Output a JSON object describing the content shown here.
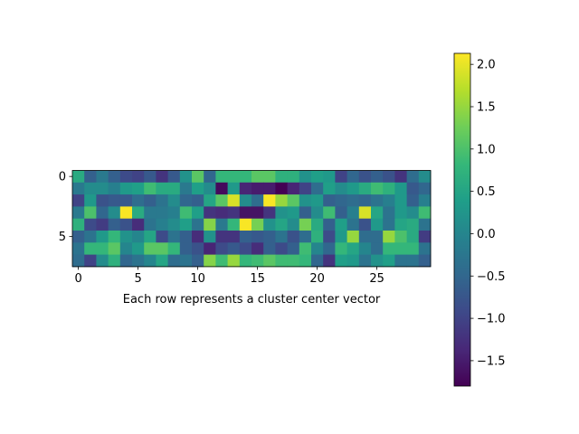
{
  "chart_data": {
    "type": "heatmap",
    "title": "",
    "xlabel": "Each row represents a cluster center vector",
    "ylabel": "",
    "colormap": "viridis",
    "n_rows": 8,
    "n_cols": 30,
    "x_ticks": [
      0,
      5,
      10,
      15,
      20,
      25
    ],
    "y_ticks": [
      0,
      5
    ],
    "colorbar": {
      "vmin": -1.8,
      "vmax": 2.13,
      "ticks": [
        -1.5,
        -1.0,
        -0.5,
        0.0,
        0.5,
        1.0,
        1.5,
        2.0
      ],
      "tick_labels": [
        "−1.5",
        "−1.0",
        "−0.5",
        "0.0",
        "0.5",
        "1.0",
        "1.5",
        "2.0"
      ]
    },
    "values": [
      [
        0.6,
        -0.6,
        -0.2,
        -0.6,
        -0.9,
        -1.0,
        -0.7,
        -1.2,
        -0.7,
        0.2,
        1.1,
        -0.5,
        0.8,
        0.8,
        0.8,
        1.1,
        1.1,
        0.7,
        0.7,
        0.2,
        0.4,
        0.3,
        -1.0,
        -0.5,
        -0.8,
        -0.6,
        -0.8,
        -1.2,
        -0.4,
        0.1
      ],
      [
        -0.2,
        0.1,
        0.1,
        -0.1,
        0.3,
        0.4,
        0.9,
        0.6,
        0.6,
        -0.2,
        0.4,
        0.1,
        -1.7,
        0.3,
        -1.4,
        -1.5,
        -1.5,
        -1.8,
        -1.4,
        -1.0,
        -0.4,
        0.4,
        0.1,
        0.3,
        0.6,
        0.9,
        0.7,
        0.3,
        -0.7,
        -0.5
      ],
      [
        -1.0,
        0.3,
        -0.8,
        -0.7,
        -0.7,
        -0.4,
        -0.6,
        -0.3,
        0.1,
        -0.5,
        -0.6,
        0.5,
        1.1,
        1.9,
        0.1,
        -0.4,
        2.1,
        1.5,
        1.1,
        0.2,
        0.3,
        -0.6,
        -0.5,
        -0.4,
        -0.5,
        -0.3,
        -0.1,
        0.3,
        -0.6,
        -0.1
      ],
      [
        -0.2,
        1.0,
        -0.5,
        0.1,
        2.1,
        0.6,
        -0.2,
        -0.2,
        -0.1,
        0.9,
        0.4,
        -1.2,
        -1.3,
        -1.2,
        -1.6,
        -1.6,
        -1.2,
        0.2,
        0.3,
        -0.6,
        0.1,
        0.9,
        -0.6,
        -0.1,
        1.9,
        0.5,
        -0.3,
        0.3,
        0.1,
        0.9
      ],
      [
        0.7,
        -0.9,
        -1.1,
        -0.6,
        -0.8,
        -1.3,
        -0.3,
        -0.1,
        0.1,
        0.4,
        -0.3,
        1.4,
        -0.2,
        0.8,
        2.1,
        1.3,
        0.2,
        0.5,
        0.1,
        1.3,
        0.6,
        -0.6,
        0.4,
        -0.3,
        -0.8,
        0.3,
        -0.3,
        0.5,
        0.6,
        -0.3
      ],
      [
        -0.6,
        -0.3,
        0.3,
        0.8,
        0.2,
        0.0,
        0.5,
        -0.9,
        -0.3,
        -0.6,
        -1.3,
        0.2,
        -1.2,
        -1.2,
        -0.6,
        -0.7,
        -0.6,
        -0.3,
        -0.8,
        -0.4,
        0.7,
        -0.9,
        0.3,
        1.5,
        -0.4,
        -0.4,
        1.5,
        1.0,
        0.6,
        -1.1
      ],
      [
        -0.3,
        0.8,
        0.8,
        1.1,
        0.0,
        0.3,
        1.1,
        1.1,
        0.8,
        -0.6,
        -0.8,
        -1.4,
        -0.9,
        -0.7,
        -0.9,
        -1.3,
        -0.6,
        -0.9,
        -0.6,
        0.9,
        0.0,
        -0.5,
        0.8,
        0.5,
        0.0,
        -0.4,
        0.8,
        0.8,
        0.8,
        -0.3
      ],
      [
        -0.4,
        -1.0,
        0.1,
        0.7,
        -0.5,
        -0.3,
        0.0,
        0.5,
        -0.4,
        -0.3,
        -0.6,
        1.4,
        0.9,
        1.5,
        0.8,
        0.9,
        1.1,
        0.9,
        0.9,
        0.8,
        -0.5,
        -1.2,
        0.4,
        0.3,
        -0.3,
        0.2,
        0.4,
        -0.3,
        -0.3,
        -0.6
      ]
    ]
  }
}
